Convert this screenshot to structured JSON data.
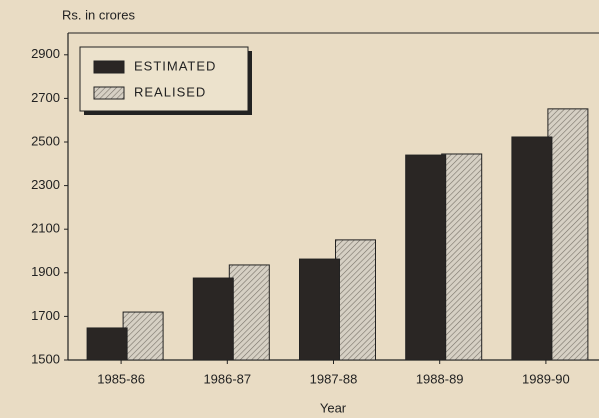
{
  "chart_data": {
    "type": "bar",
    "y_label": "Rs. in crores",
    "x_label": "Year",
    "categories": [
      "1985-86",
      "1986-87",
      "1987-88",
      "1988-89",
      "1989-90"
    ],
    "series": [
      {
        "name": "ESTIMATED",
        "color": "#2a2624",
        "values": [
          1647,
          1876,
          1963,
          2440,
          2523
        ]
      },
      {
        "name": "REALISED",
        "color": "#d6d0c4",
        "values": [
          1720,
          1936,
          2051,
          2445,
          2652
        ]
      }
    ],
    "ylim": [
      1500,
      3000
    ],
    "yticks": [
      1500,
      1700,
      1900,
      2100,
      2300,
      2500,
      2700,
      2900
    ],
    "legend": "upper left"
  }
}
